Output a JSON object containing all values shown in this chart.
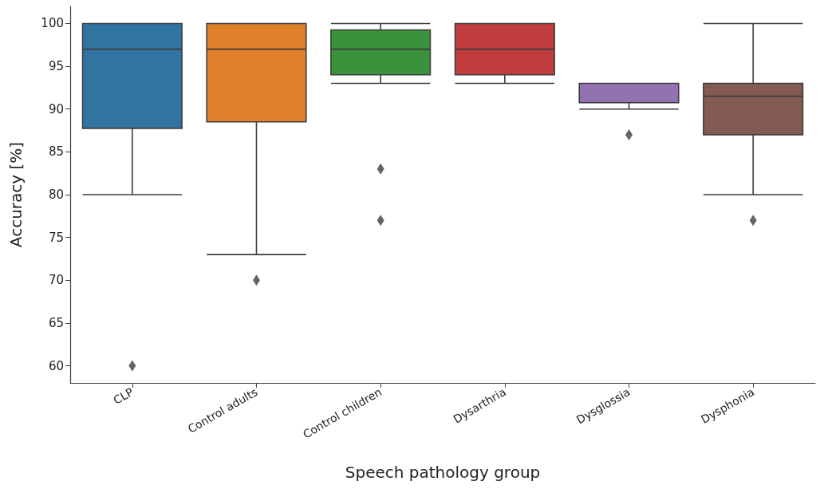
{
  "chart_data": {
    "type": "box",
    "xlabel": "Speech pathology group",
    "ylabel": "Accuracy [%]",
    "categories": [
      "CLP",
      "Control adults",
      "Control children",
      "Dysarthria",
      "Dysglossia",
      "Dysphonia"
    ],
    "boxes": [
      {
        "low": 80,
        "q1": 87.75,
        "median": 97,
        "q3": 100,
        "high": 100,
        "outliers": [
          60
        ]
      },
      {
        "low": 73,
        "q1": 88.5,
        "median": 97,
        "q3": 100,
        "high": 100,
        "outliers": [
          70
        ]
      },
      {
        "low": 93,
        "q1": 94,
        "median": 97,
        "q3": 99.25,
        "high": 100,
        "outliers": [
          83,
          77
        ]
      },
      {
        "low": 93,
        "q1": 94,
        "median": 97,
        "q3": 100,
        "high": 100
      },
      {
        "low": 90,
        "q1": 90.75,
        "median": 93,
        "q3": 93,
        "high": 93,
        "outliers": [
          87
        ]
      },
      {
        "low": 80,
        "q1": 87,
        "median": 91.5,
        "q3": 93,
        "high": 100,
        "outliers": [
          77
        ]
      }
    ],
    "colors": [
      "#3274a1",
      "#e1812c",
      "#3a923a",
      "#c03d3e",
      "#9372b2",
      "#845b53"
    ],
    "ylim": [
      58,
      102
    ],
    "yticks": [
      60,
      65,
      70,
      75,
      80,
      85,
      90,
      95,
      100
    ],
    "grid": false,
    "marker": "diamond"
  }
}
